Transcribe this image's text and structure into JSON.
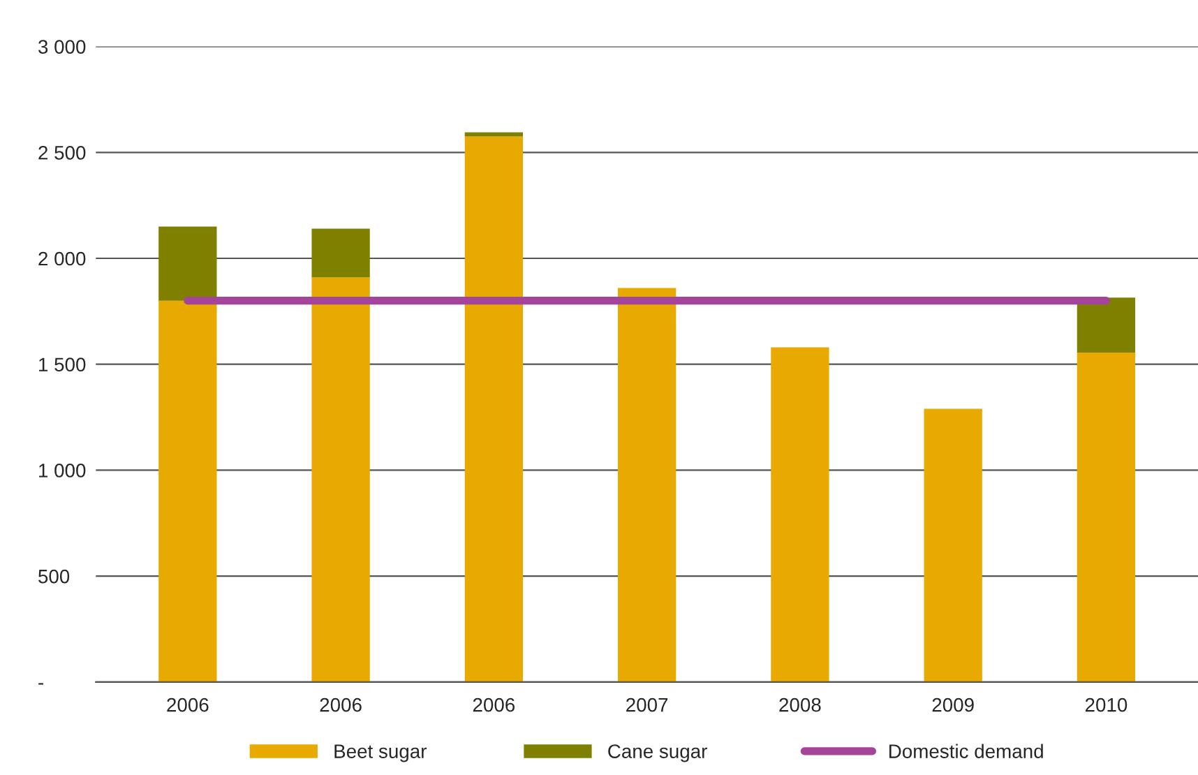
{
  "chart_data": {
    "type": "bar",
    "stacked": true,
    "categories": [
      "2006",
      "2006",
      "2006",
      "2007",
      "2008",
      "2009",
      "2010"
    ],
    "series": [
      {
        "name": "Beet sugar",
        "color": "#e8a900",
        "values": [
          1800,
          1910,
          2575,
          1860,
          1580,
          1290,
          1555
        ]
      },
      {
        "name": "Cane sugar",
        "color": "#7f7f00",
        "values": [
          350,
          230,
          20,
          null,
          null,
          null,
          260
        ]
      },
      {
        "name": "Domestic demand",
        "type": "line",
        "color": "#a5449b",
        "values": [
          1800,
          1800,
          1800,
          1800,
          1800,
          1800,
          1800
        ]
      }
    ],
    "ylim": [
      0,
      3000
    ],
    "yticks": [
      {
        "value": 0,
        "label": "-"
      },
      {
        "value": 500,
        "label": "500"
      },
      {
        "value": 1000,
        "label": "1 000"
      },
      {
        "value": 1500,
        "label": "1 500"
      },
      {
        "value": 2000,
        "label": "2 000"
      },
      {
        "value": 2500,
        "label": "2 500"
      },
      {
        "value": 3000,
        "label": "3 000"
      }
    ],
    "grid": "y",
    "legend": "bottom"
  }
}
